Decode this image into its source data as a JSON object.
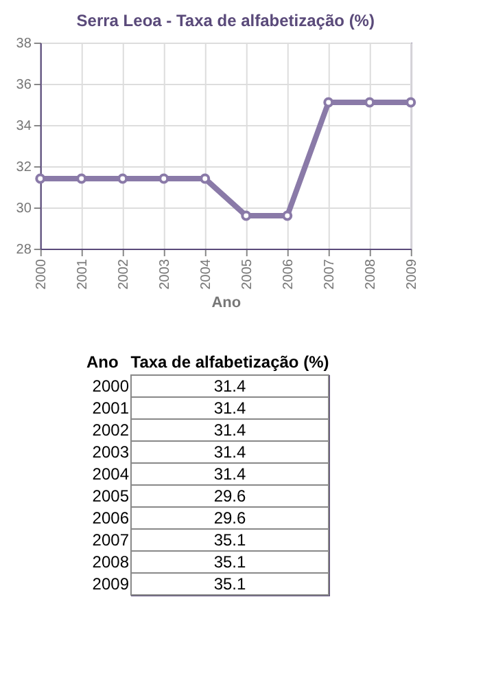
{
  "chart_data": [
    {
      "type": "line",
      "title": "Serra Leoa - Taxa de alfabetização (%)",
      "xlabel": "Ano",
      "categories": [
        "2000",
        "2001",
        "2002",
        "2003",
        "2004",
        "2005",
        "2006",
        "2007",
        "2008",
        "2009"
      ],
      "series": [
        {
          "color": "#8a7aa8",
          "values": [
            31.4,
            31.4,
            31.4,
            31.4,
            31.4,
            29.6,
            29.6,
            35.1,
            35.1,
            35.1
          ]
        }
      ],
      "ylim": [
        28,
        38
      ],
      "yticks": [
        28,
        30,
        32,
        34,
        36,
        38
      ],
      "grid": true,
      "marker": "circle",
      "line_style": "solid"
    },
    {
      "type": "heatmap",
      "ylabel": "Ano",
      "categories": [
        "Taxa de alfabetização (%)"
      ],
      "y_categories": [
        "2000",
        "2001",
        "2002",
        "2003",
        "2004",
        "2005",
        "2006",
        "2007",
        "2008",
        "2009"
      ],
      "cells": [
        [
          31.4
        ],
        [
          31.4
        ],
        [
          31.4
        ],
        [
          31.4
        ],
        [
          31.4
        ],
        [
          29.6
        ],
        [
          29.6
        ],
        [
          35.1
        ],
        [
          35.1
        ],
        [
          35.1
        ]
      ],
      "data_labels": true
    }
  ]
}
